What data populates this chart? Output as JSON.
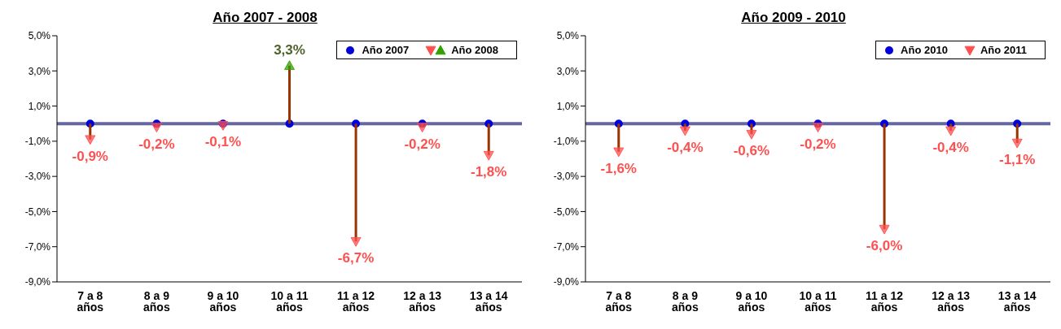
{
  "chart_data": [
    {
      "type": "scatter",
      "title": "Año 2007 - 2008",
      "categories": [
        "7 a 8 años",
        "8 a 9 años",
        "9 a 10 años",
        "10 a 11 años",
        "11 a 12 años",
        "12 a 13 años",
        "13 a 14 años"
      ],
      "series": [
        {
          "name": "Año 2007",
          "color": "#0000dd",
          "marker": "circle",
          "values": [
            0,
            0,
            0,
            0,
            0,
            0,
            0
          ]
        },
        {
          "name": "Año 2008",
          "type": "lollipop",
          "color": "#993300",
          "marker": "triangle",
          "colors": [
            "#ff5050",
            "#ff5050",
            "#ff5050",
            "#33a000",
            "#ff5050",
            "#ff5050",
            "#ff5050"
          ],
          "values": [
            -0.9,
            -0.2,
            -0.1,
            3.3,
            -6.7,
            -0.2,
            -1.8
          ],
          "value_labels": [
            "-0,9%",
            "-0,2%",
            "-0,1%",
            "3,3%",
            "-6,7%",
            "-0,2%",
            "-1,8%"
          ]
        }
      ],
      "ylim": [
        -9,
        5
      ],
      "yticks": [
        {
          "value": -9,
          "label": "-9,0%"
        },
        {
          "value": -7,
          "label": "-7,0%"
        },
        {
          "value": -5,
          "label": "-5,0%"
        },
        {
          "value": -3,
          "label": "-3,0%"
        },
        {
          "value": -1,
          "label": "-1,0%"
        },
        {
          "value": 1,
          "label": "1,0%"
        },
        {
          "value": 3,
          "label": "3,0%"
        },
        {
          "value": 5,
          "label": "5,0%"
        }
      ],
      "ref_lines": [
        {
          "axis": "y",
          "value": 0,
          "color": "#6666a0"
        }
      ],
      "grid": false,
      "legend": "top right"
    },
    {
      "type": "scatter",
      "title": "Año 2009 - 2010",
      "categories": [
        "7 a 8 años",
        "8 a 9 años",
        "9 a 10 años",
        "10 a 11 años",
        "11 a 12 años",
        "12 a 13 años",
        "13 a 14 años"
      ],
      "series": [
        {
          "name": "Año 2010",
          "color": "#0000dd",
          "marker": "circle",
          "values": [
            0,
            0,
            0,
            0,
            0,
            0,
            0
          ]
        },
        {
          "name": "Año 2011",
          "type": "lollipop",
          "color": "#993300",
          "marker": "triangle",
          "colors": [
            "#ff5050",
            "#ff5050",
            "#ff5050",
            "#ff5050",
            "#ff5050",
            "#ff5050",
            "#ff5050"
          ],
          "values": [
            -1.6,
            -0.4,
            -0.6,
            -0.2,
            -6.0,
            -0.4,
            -1.1
          ],
          "value_labels": [
            "-1,6%",
            "-0,4%",
            "-0,6%",
            "-0,2%",
            "-6,0%",
            "-0,4%",
            "-1,1%"
          ]
        }
      ],
      "ylim": [
        -9,
        5
      ],
      "yticks": [
        {
          "value": -9,
          "label": "-9,0%"
        },
        {
          "value": -7,
          "label": "-7,0%"
        },
        {
          "value": -5,
          "label": "-5,0%"
        },
        {
          "value": -3,
          "label": "-3,0%"
        },
        {
          "value": -1,
          "label": "-1,0%"
        },
        {
          "value": 1,
          "label": "1,0%"
        },
        {
          "value": 3,
          "label": "3,0%"
        },
        {
          "value": 5,
          "label": "5,0%"
        }
      ],
      "ref_lines": [
        {
          "axis": "y",
          "value": 0,
          "color": "#6666a0"
        }
      ],
      "grid": false,
      "legend": "top right"
    }
  ]
}
